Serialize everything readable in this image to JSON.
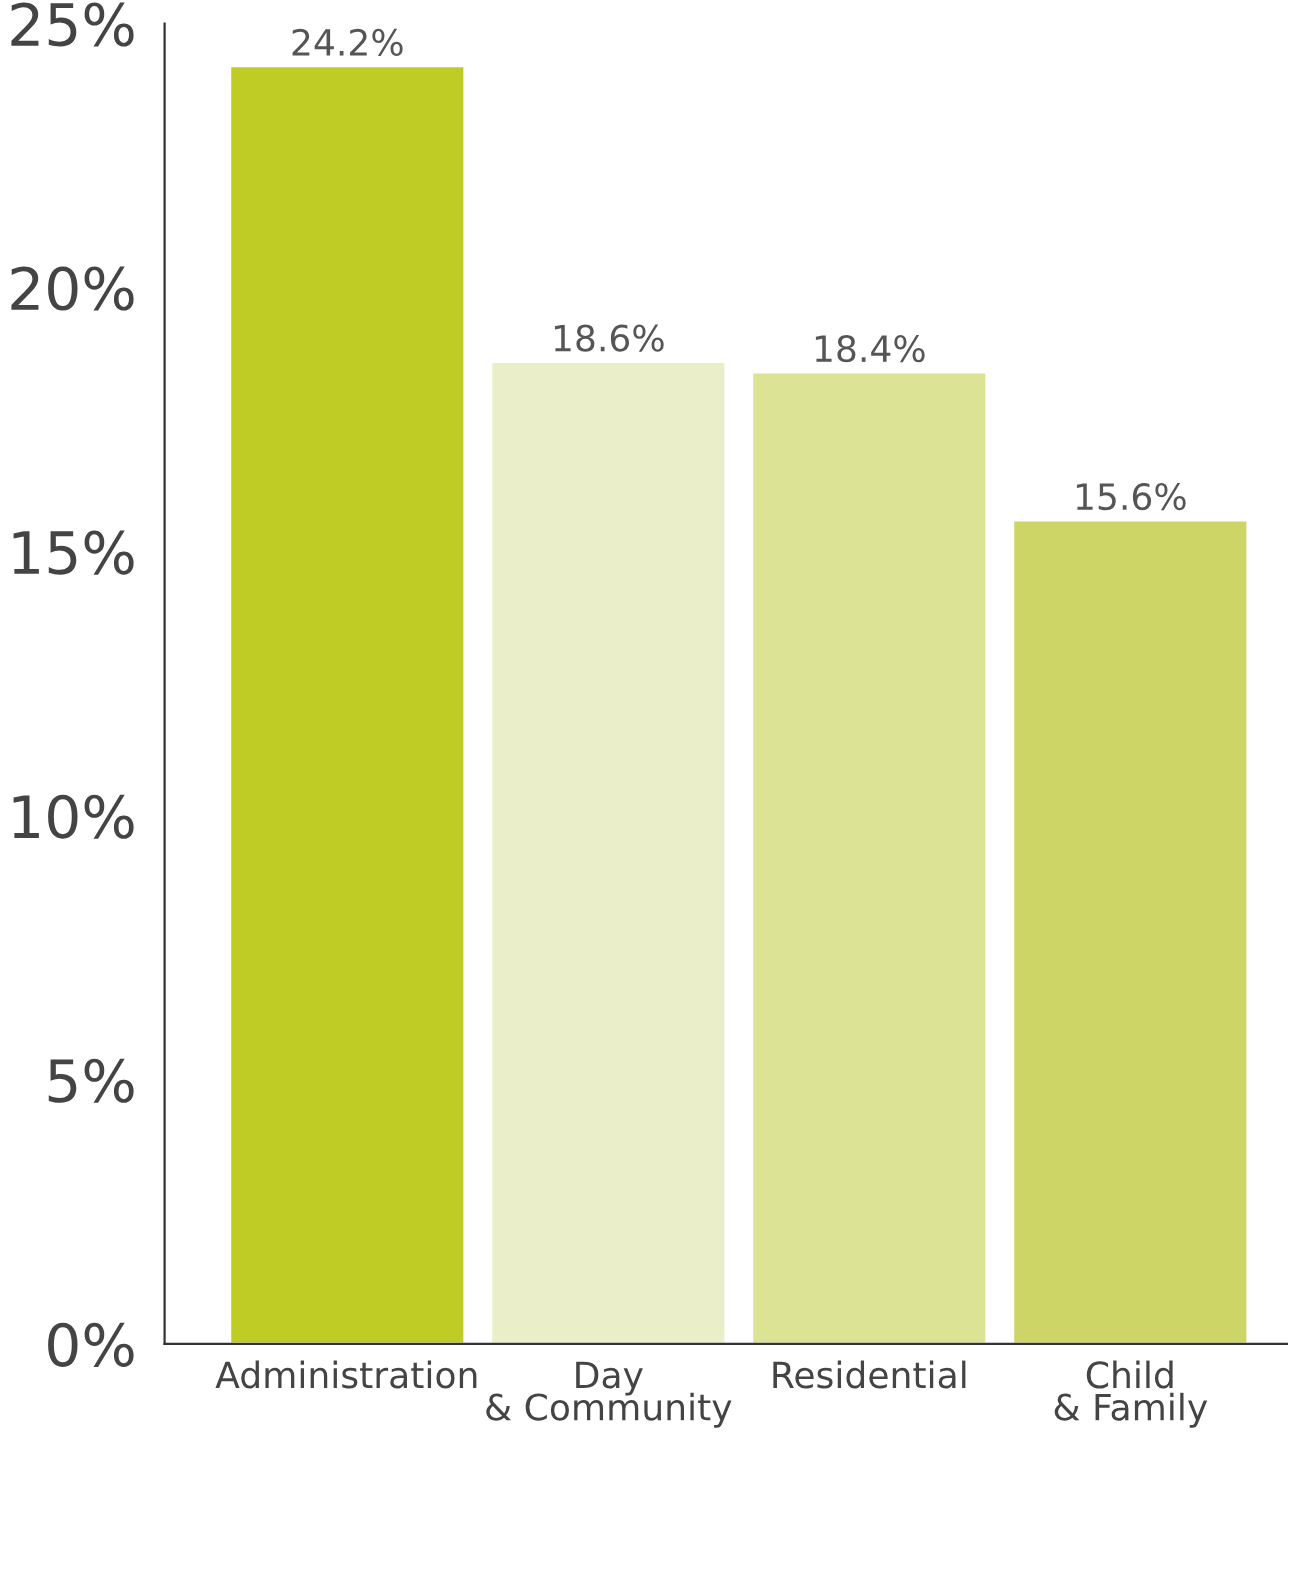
{
  "chart_data": {
    "type": "bar",
    "categories": [
      "Administration",
      "Day\n& Community",
      "Residential",
      "Child\n& Family"
    ],
    "values": [
      24.2,
      18.6,
      18.4,
      15.6
    ],
    "colors": [
      "#bfcc26",
      "#eaefc9",
      "#dce394",
      "#cdd566"
    ],
    "value_labels": [
      "24.2%",
      "18.6%",
      "18.4%",
      "15.6%"
    ],
    "ylim": [
      0,
      25
    ],
    "yticks": [
      {
        "value": 0,
        "label": "0%"
      },
      {
        "value": 5,
        "label": "5%"
      },
      {
        "value": 10,
        "label": "10%"
      },
      {
        "value": 15,
        "label": "15%"
      },
      {
        "value": 20,
        "label": "20%"
      },
      {
        "value": 25,
        "label": "25%"
      }
    ],
    "grid": false,
    "legend": false
  }
}
